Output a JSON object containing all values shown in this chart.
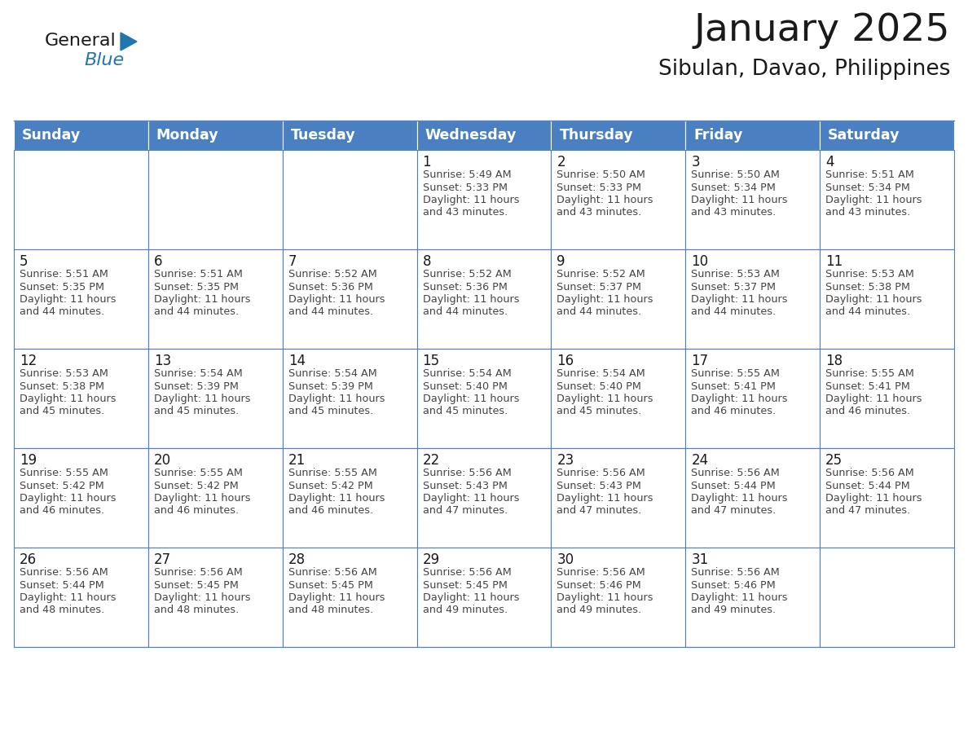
{
  "title": "January 2025",
  "subtitle": "Sibulan, Davao, Philippines",
  "days_of_week": [
    "Sunday",
    "Monday",
    "Tuesday",
    "Wednesday",
    "Thursday",
    "Friday",
    "Saturday"
  ],
  "header_bg": "#4a7fc1",
  "header_text": "#FFFFFF",
  "cell_bg": "#FFFFFF",
  "cell_bg_alt": "#f0f4fa",
  "border_color": "#4a7fc1",
  "title_color": "#1a1a1a",
  "subtitle_color": "#1a1a1a",
  "day_num_color": "#1a1a1a",
  "cell_text_color": "#444444",
  "logo_general_color": "#1a1a1a",
  "logo_blue_color": "#2176AE",
  "logo_triangle_color": "#2176AE",
  "calendar": [
    [
      {
        "day": "",
        "sunrise": "",
        "sunset": "",
        "daylight": ""
      },
      {
        "day": "",
        "sunrise": "",
        "sunset": "",
        "daylight": ""
      },
      {
        "day": "",
        "sunrise": "",
        "sunset": "",
        "daylight": ""
      },
      {
        "day": "1",
        "sunrise": "5:49 AM",
        "sunset": "5:33 PM",
        "daylight": "11 hours\nand 43 minutes."
      },
      {
        "day": "2",
        "sunrise": "5:50 AM",
        "sunset": "5:33 PM",
        "daylight": "11 hours\nand 43 minutes."
      },
      {
        "day": "3",
        "sunrise": "5:50 AM",
        "sunset": "5:34 PM",
        "daylight": "11 hours\nand 43 minutes."
      },
      {
        "day": "4",
        "sunrise": "5:51 AM",
        "sunset": "5:34 PM",
        "daylight": "11 hours\nand 43 minutes."
      }
    ],
    [
      {
        "day": "5",
        "sunrise": "5:51 AM",
        "sunset": "5:35 PM",
        "daylight": "11 hours\nand 44 minutes."
      },
      {
        "day": "6",
        "sunrise": "5:51 AM",
        "sunset": "5:35 PM",
        "daylight": "11 hours\nand 44 minutes."
      },
      {
        "day": "7",
        "sunrise": "5:52 AM",
        "sunset": "5:36 PM",
        "daylight": "11 hours\nand 44 minutes."
      },
      {
        "day": "8",
        "sunrise": "5:52 AM",
        "sunset": "5:36 PM",
        "daylight": "11 hours\nand 44 minutes."
      },
      {
        "day": "9",
        "sunrise": "5:52 AM",
        "sunset": "5:37 PM",
        "daylight": "11 hours\nand 44 minutes."
      },
      {
        "day": "10",
        "sunrise": "5:53 AM",
        "sunset": "5:37 PM",
        "daylight": "11 hours\nand 44 minutes."
      },
      {
        "day": "11",
        "sunrise": "5:53 AM",
        "sunset": "5:38 PM",
        "daylight": "11 hours\nand 44 minutes."
      }
    ],
    [
      {
        "day": "12",
        "sunrise": "5:53 AM",
        "sunset": "5:38 PM",
        "daylight": "11 hours\nand 45 minutes."
      },
      {
        "day": "13",
        "sunrise": "5:54 AM",
        "sunset": "5:39 PM",
        "daylight": "11 hours\nand 45 minutes."
      },
      {
        "day": "14",
        "sunrise": "5:54 AM",
        "sunset": "5:39 PM",
        "daylight": "11 hours\nand 45 minutes."
      },
      {
        "day": "15",
        "sunrise": "5:54 AM",
        "sunset": "5:40 PM",
        "daylight": "11 hours\nand 45 minutes."
      },
      {
        "day": "16",
        "sunrise": "5:54 AM",
        "sunset": "5:40 PM",
        "daylight": "11 hours\nand 45 minutes."
      },
      {
        "day": "17",
        "sunrise": "5:55 AM",
        "sunset": "5:41 PM",
        "daylight": "11 hours\nand 46 minutes."
      },
      {
        "day": "18",
        "sunrise": "5:55 AM",
        "sunset": "5:41 PM",
        "daylight": "11 hours\nand 46 minutes."
      }
    ],
    [
      {
        "day": "19",
        "sunrise": "5:55 AM",
        "sunset": "5:42 PM",
        "daylight": "11 hours\nand 46 minutes."
      },
      {
        "day": "20",
        "sunrise": "5:55 AM",
        "sunset": "5:42 PM",
        "daylight": "11 hours\nand 46 minutes."
      },
      {
        "day": "21",
        "sunrise": "5:55 AM",
        "sunset": "5:42 PM",
        "daylight": "11 hours\nand 46 minutes."
      },
      {
        "day": "22",
        "sunrise": "5:56 AM",
        "sunset": "5:43 PM",
        "daylight": "11 hours\nand 47 minutes."
      },
      {
        "day": "23",
        "sunrise": "5:56 AM",
        "sunset": "5:43 PM",
        "daylight": "11 hours\nand 47 minutes."
      },
      {
        "day": "24",
        "sunrise": "5:56 AM",
        "sunset": "5:44 PM",
        "daylight": "11 hours\nand 47 minutes."
      },
      {
        "day": "25",
        "sunrise": "5:56 AM",
        "sunset": "5:44 PM",
        "daylight": "11 hours\nand 47 minutes."
      }
    ],
    [
      {
        "day": "26",
        "sunrise": "5:56 AM",
        "sunset": "5:44 PM",
        "daylight": "11 hours\nand 48 minutes."
      },
      {
        "day": "27",
        "sunrise": "5:56 AM",
        "sunset": "5:45 PM",
        "daylight": "11 hours\nand 48 minutes."
      },
      {
        "day": "28",
        "sunrise": "5:56 AM",
        "sunset": "5:45 PM",
        "daylight": "11 hours\nand 48 minutes."
      },
      {
        "day": "29",
        "sunrise": "5:56 AM",
        "sunset": "5:45 PM",
        "daylight": "11 hours\nand 49 minutes."
      },
      {
        "day": "30",
        "sunrise": "5:56 AM",
        "sunset": "5:46 PM",
        "daylight": "11 hours\nand 49 minutes."
      },
      {
        "day": "31",
        "sunrise": "5:56 AM",
        "sunset": "5:46 PM",
        "daylight": "11 hours\nand 49 minutes."
      },
      {
        "day": "",
        "sunrise": "",
        "sunset": "",
        "daylight": ""
      }
    ]
  ]
}
